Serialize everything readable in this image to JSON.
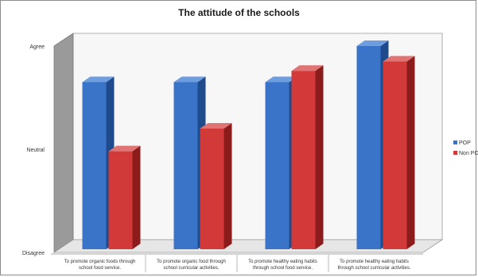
{
  "chart_data": {
    "type": "bar",
    "title": "The attitude of the schools",
    "xlabel": "",
    "ylabel": "",
    "ylim": [
      0,
      2
    ],
    "y_ticks": [
      {
        "value": 2,
        "label": "Agree"
      },
      {
        "value": 1,
        "label": "Neutral"
      },
      {
        "value": 0,
        "label": "Disagree"
      }
    ],
    "categories": [
      [
        "To promote organic foods through",
        "school food service."
      ],
      [
        "To promote organic food through",
        "school curricular activities."
      ],
      [
        "To promote healthy eating habits",
        "through school food service."
      ],
      [
        "To promote healthy eating habits",
        "through school curricular activities."
      ]
    ],
    "series": [
      {
        "name": "POP",
        "color": "#3a74c8",
        "side": "#1f4a8c",
        "top": "#6f9ee0",
        "values": [
          1.65,
          1.65,
          1.65,
          2.0
        ]
      },
      {
        "name": "Non PO",
        "color": "#d23a3a",
        "side": "#8c1c1c",
        "top": "#e07474",
        "values": [
          0.98,
          1.2,
          1.76,
          1.85
        ]
      }
    ],
    "legend_position": "right",
    "grid": false
  }
}
